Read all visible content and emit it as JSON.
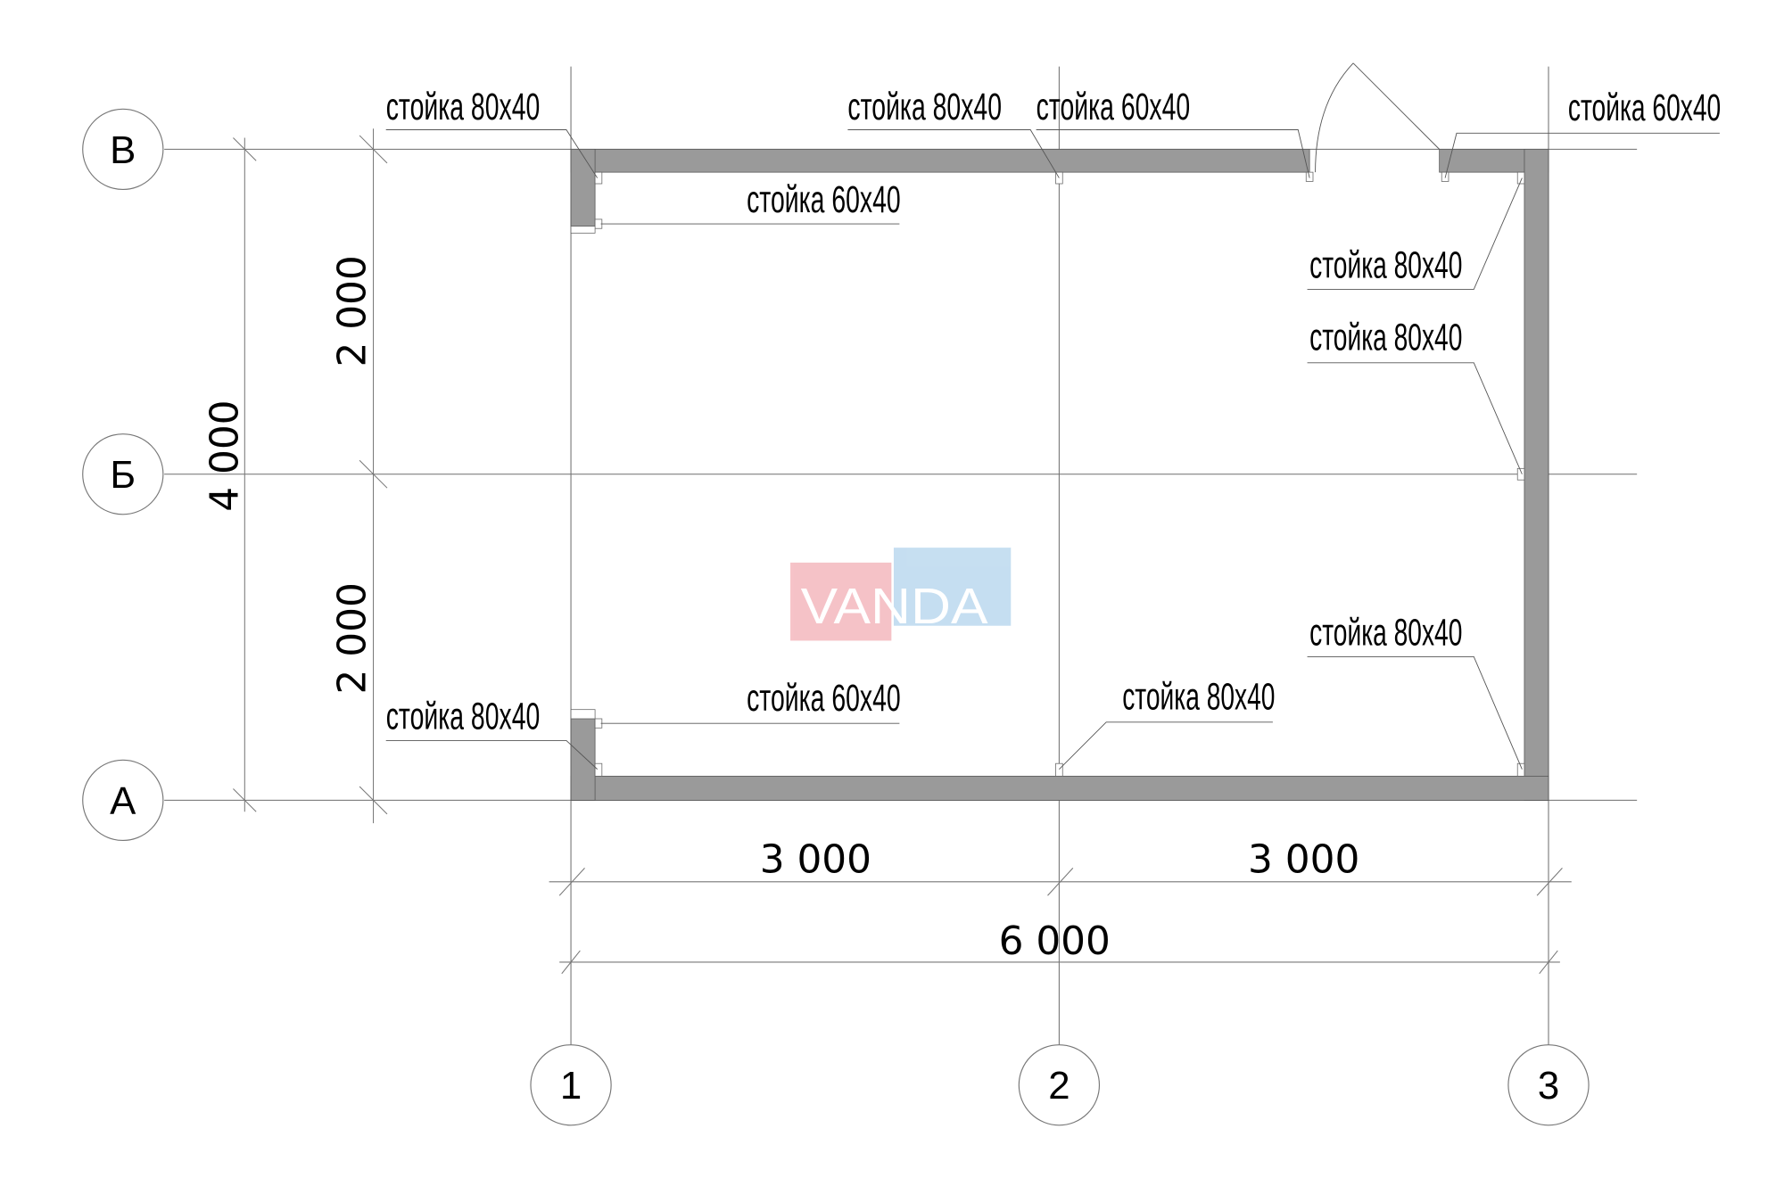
{
  "axes": {
    "rows": [
      "В",
      "Б",
      "А"
    ],
    "columns": [
      "1",
      "2",
      "3"
    ]
  },
  "dimensions": {
    "total_height": "4 000",
    "upper_span": "2 000",
    "lower_span": "2 000",
    "left_bay": "3 000",
    "right_bay": "3 000",
    "total_width": "6 000"
  },
  "labels": [
    "стойка 80x40",
    "стойка 80x40",
    "стойка 60x40",
    "стойка 60x40",
    "стойка 60x40",
    "стойка 80x40",
    "стойка 80x40",
    "стойка 80x40",
    "стойка 80x40",
    "стойка 60x40",
    "стойка 80x40"
  ],
  "watermark": "VANDA",
  "colors": {
    "wall": "#9a9a9a",
    "watermark_red": "#f4b8be",
    "watermark_blue": "#bcd9ef"
  }
}
